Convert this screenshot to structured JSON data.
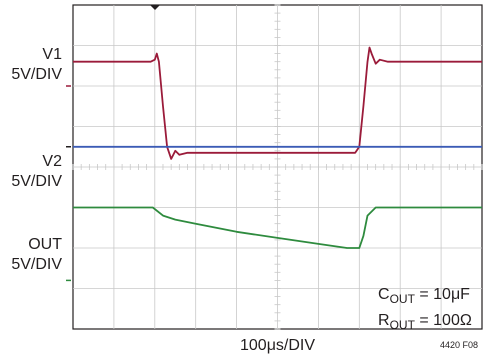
{
  "chart_data": {
    "type": "line",
    "title": "",
    "xlabel": "100μs/DIV",
    "x_unit": "μs",
    "x_per_div": 100,
    "divisions": {
      "x": 10,
      "y": 8
    },
    "grid": true,
    "channel_labels": [
      {
        "name": "V1",
        "scale": "5V/DIV",
        "color": "#9b1b3a"
      },
      {
        "name": "V2",
        "scale": "5V/DIV",
        "color": "#3b5bb5"
      },
      {
        "name": "OUT",
        "scale": "5V/DIV",
        "color": "#2e8b3e"
      }
    ],
    "series": [
      {
        "name": "V1",
        "color": "#9b1b3a",
        "x_div": [
          0,
          1.9,
          2.0,
          2.05,
          2.1,
          2.2,
          2.3,
          2.4,
          2.5,
          2.6,
          2.8,
          3.0,
          6.9,
          7.0,
          7.1,
          7.2,
          7.25,
          7.3,
          7.4,
          7.5,
          7.7,
          8.0,
          10
        ],
        "y_div": [
          6.6,
          6.6,
          6.65,
          6.8,
          6.6,
          5.5,
          4.5,
          4.2,
          4.4,
          4.3,
          4.35,
          4.35,
          4.35,
          4.5,
          5.5,
          6.6,
          6.95,
          6.8,
          6.55,
          6.65,
          6.6,
          6.6,
          6.6
        ]
      },
      {
        "name": "V2",
        "color": "#3b5bb5",
        "x_div": [
          0,
          1.0,
          2.0,
          3.0,
          4.0,
          5.0,
          6.0,
          7.0,
          8.0,
          9.0,
          10
        ],
        "y_div": [
          4.5,
          4.5,
          4.5,
          4.5,
          4.5,
          4.5,
          4.5,
          4.5,
          4.5,
          4.5,
          4.5
        ]
      },
      {
        "name": "OUT",
        "color": "#2e8b3e",
        "x_div": [
          0,
          1.0,
          1.95,
          2.2,
          2.5,
          3.0,
          4.0,
          5.0,
          6.0,
          6.7,
          7.0,
          7.1,
          7.2,
          7.4,
          7.6,
          8.0,
          10
        ],
        "y_div": [
          3.0,
          3.0,
          3.0,
          2.8,
          2.7,
          2.6,
          2.4,
          2.25,
          2.1,
          2.0,
          2.0,
          2.3,
          2.8,
          3.0,
          3.0,
          3.0,
          3.0
        ]
      }
    ],
    "annotation": {
      "c_var": "C",
      "c_sub": "OUT",
      "c_val": " = 10μF",
      "r_var": "R",
      "r_sub": "OUT",
      "r_val": " = 100Ω"
    },
    "figure_id": "4420 F08"
  }
}
